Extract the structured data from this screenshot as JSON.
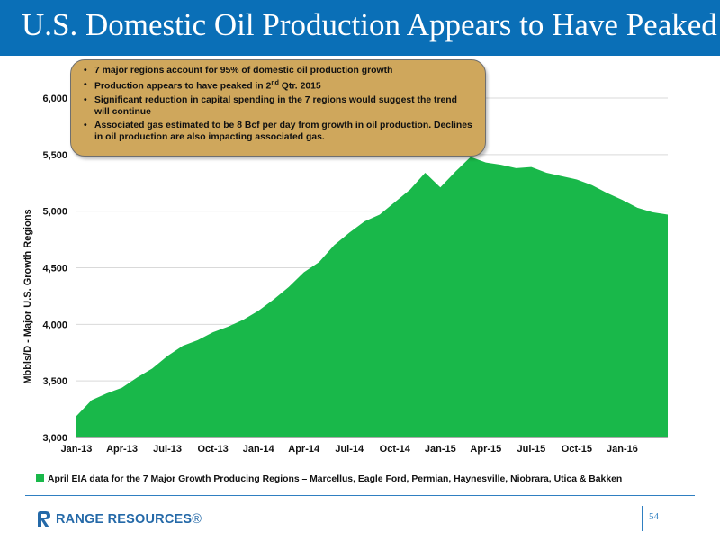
{
  "slide": {
    "title": "U.S. Domestic Oil Production Appears to Have Peaked",
    "page_number": "54",
    "logo_text_bold": "RANGE RESOURCES",
    "logo_text_mark": "®",
    "header_color": "#0a6fb7",
    "accent_color": "#2f7fc1"
  },
  "callout": {
    "bullet_1": "7 major regions account for 95% of domestic oil production growth",
    "bullet_2_pre": "Production appears to have peaked in 2",
    "bullet_2_sup": "nd",
    "bullet_2_post": " Qtr. 2015",
    "bullet_3": "Significant reduction in capital spending in the 7 regions would suggest the trend will continue",
    "bullet_4": "Associated gas estimated to be 8 Bcf per day from growth in oil production. Declines in oil production are also impacting associated gas.",
    "fill_color": "#cfa75c"
  },
  "legend": {
    "label": "April EIA data for the 7 Major Growth Producing Regions – Marcellus, Eagle Ford, Permian, Haynesville, Niobrara, Utica & Bakken"
  },
  "chart_data": {
    "type": "area",
    "ylabel": "Mbbls/D - Major U.S. Growth Regions",
    "xlabel": "",
    "ylim": [
      3000,
      6000
    ],
    "y_ticks": [
      "3,000",
      "3,500",
      "4,000",
      "4,500",
      "5,000",
      "5,500",
      "6,000"
    ],
    "y_tick_values": [
      3000,
      3500,
      4000,
      4500,
      5000,
      5500,
      6000
    ],
    "x_tick_labels": [
      "Jan-13",
      "Apr-13",
      "Jul-13",
      "Oct-13",
      "Jan-14",
      "Apr-14",
      "Jul-14",
      "Oct-14",
      "Jan-15",
      "Apr-15",
      "Jul-15",
      "Oct-15",
      "Jan-16"
    ],
    "x_tick_values": [
      0,
      3,
      6,
      9,
      12,
      15,
      18,
      21,
      24,
      27,
      30,
      33,
      36
    ],
    "x_count": 40,
    "series": [
      {
        "name": "April EIA data for the 7 Major Growth Producing Regions – Marcellus, Eagle Ford, Permian, Haynesville, Niobrara, Utica & Bakken",
        "color": "#19b84a",
        "values": [
          3190,
          3330,
          3390,
          3440,
          3530,
          3610,
          3720,
          3810,
          3860,
          3930,
          3980,
          4040,
          4120,
          4220,
          4330,
          4460,
          4550,
          4700,
          4810,
          4910,
          4970,
          5080,
          5190,
          5340,
          5210,
          5350,
          5480,
          5430,
          5410,
          5380,
          5390,
          5340,
          5310,
          5280,
          5230,
          5160,
          5100,
          5030,
          4990,
          4970
        ]
      }
    ],
    "grid": true,
    "legend_position": "bottom"
  }
}
